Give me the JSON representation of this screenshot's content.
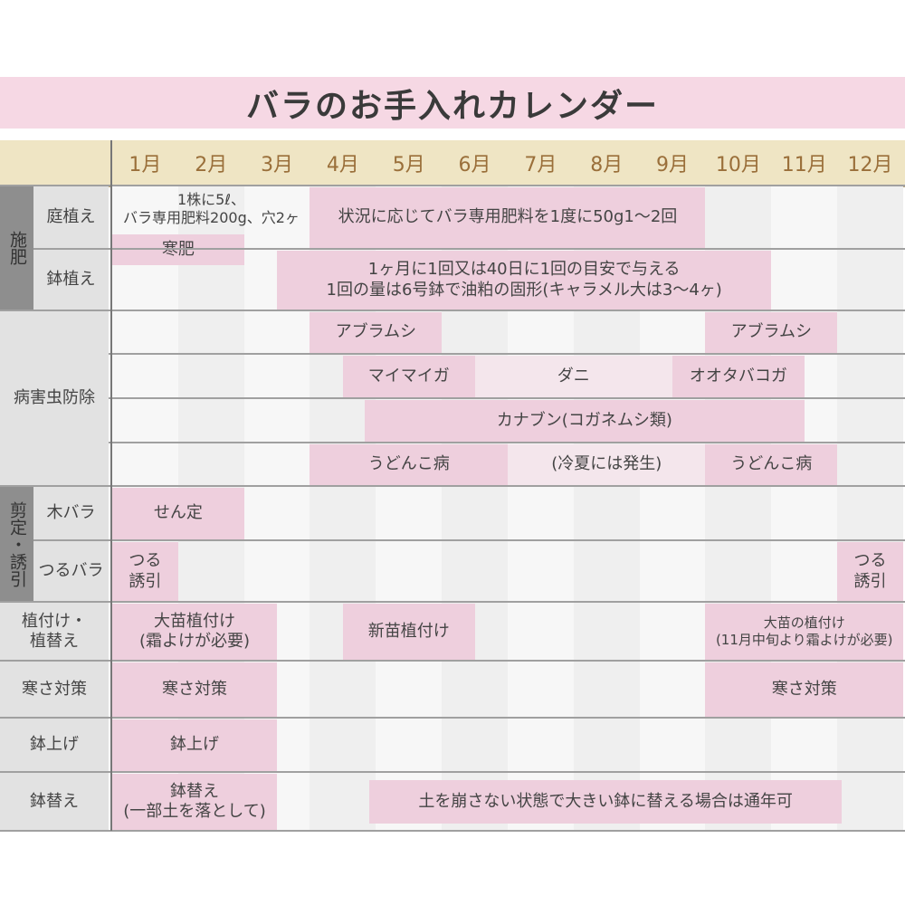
{
  "title": "バラのお手入れカレンダー",
  "colors": {
    "bar": "#eecfdd",
    "bar_light": "#f4e6ec",
    "title_bg": "#f6d8e4",
    "header_bg": "#efe5c4",
    "month_text": "#9a6f3a"
  },
  "months": [
    "1月",
    "2月",
    "3月",
    "4月",
    "5月",
    "6月",
    "7月",
    "8月",
    "9月",
    "10月",
    "11月",
    "12月"
  ],
  "categories": [
    {
      "label": "施肥",
      "rows": [
        0,
        1
      ]
    },
    {
      "label": "剪定・誘引",
      "rows": [
        6,
        7
      ]
    }
  ],
  "rows": [
    {
      "label": "庭植え"
    },
    {
      "label": "鉢植え"
    },
    {
      "label": "病害虫防除"
    },
    {
      "label": ""
    },
    {
      "label": ""
    },
    {
      "label": ""
    },
    {
      "label": "木バラ"
    },
    {
      "label": "つるバラ"
    },
    {
      "label": "植付け・\n植替え"
    },
    {
      "label": "寒さ対策"
    },
    {
      "label": "鉢上げ"
    },
    {
      "label": "鉢替え"
    }
  ],
  "note_garden": "1株に5ℓ、\nバラ専用肥料200g、穴2ヶ",
  "bars": [
    {
      "row": 0,
      "start": 4,
      "end": 10,
      "label": "状況に応じてバラ専用肥料を1度に50g1〜2回"
    },
    {
      "row": "kanpi",
      "start": 1,
      "end": 3,
      "label": "寒肥"
    },
    {
      "row": 1,
      "start": 3.5,
      "end": 11,
      "label": "1ヶ月に1回又は40日に1回の目安で与える\n1回の量は6号鉢で油粕の固形(キャラメル大は3〜4ヶ)"
    },
    {
      "row": 2,
      "start": 4,
      "end": 6,
      "label": "アブラムシ"
    },
    {
      "row": 2,
      "start": 10,
      "end": 12,
      "label": "アブラムシ"
    },
    {
      "row": 3,
      "start": 4.5,
      "end": 6.5,
      "label": "マイマイガ"
    },
    {
      "row": 3,
      "start": 6.5,
      "end": 9.5,
      "label": "ダニ",
      "light": true
    },
    {
      "row": 3,
      "start": 9.5,
      "end": 11.5,
      "label": "オオタバコガ"
    },
    {
      "row": 4,
      "start": 4.83,
      "end": 11.5,
      "label": "カナブン(コガネムシ類)"
    },
    {
      "row": 5,
      "start": 4,
      "end": 7,
      "label": "うどんこ病"
    },
    {
      "row": 5,
      "start": 7,
      "end": 10,
      "label": "(冷夏には発生)",
      "light": true
    },
    {
      "row": 5,
      "start": 10,
      "end": 12,
      "label": "うどんこ病"
    },
    {
      "row": 6,
      "start": 1,
      "end": 3,
      "label": "せん定"
    },
    {
      "row": 7,
      "start": 1,
      "end": 2,
      "label": "つる\n誘引"
    },
    {
      "row": 7,
      "start": 12,
      "end": 13,
      "label": "つる\n誘引"
    },
    {
      "row": 8,
      "start": 1,
      "end": 3.5,
      "label": "大苗植付け\n(霜よけが必要)"
    },
    {
      "row": 8,
      "start": 4.5,
      "end": 6.5,
      "label": "新苗植付け"
    },
    {
      "row": 8,
      "start": 10,
      "end": 13,
      "label": "大苗の植付け\n(11月中旬より霜よけが必要)",
      "small": true
    },
    {
      "row": 9,
      "start": 1,
      "end": 3.5,
      "label": "寒さ対策"
    },
    {
      "row": 9,
      "start": 10,
      "end": 13,
      "label": "寒さ対策"
    },
    {
      "row": 10,
      "start": 1,
      "end": 3.5,
      "label": "鉢上げ"
    },
    {
      "row": 11,
      "start": 1,
      "end": 3.5,
      "label": "鉢替え\n(一部土を落として)"
    },
    {
      "row": "inner11",
      "start": 4.9,
      "end": 12.07,
      "label": "土を崩さない状態で大きい鉢に替える場合は通年可"
    }
  ]
}
